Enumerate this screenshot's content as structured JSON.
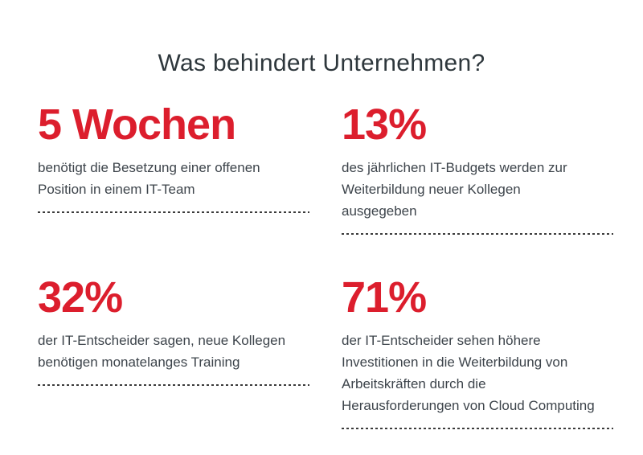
{
  "colors": {
    "background": "#ffffff",
    "accent_red": "#dc1e2d",
    "title_text": "#2e373c",
    "body_text": "#3d444b",
    "divider": "#3b3b3b"
  },
  "title": "Was behindert Unternehmen?",
  "stats": [
    {
      "value": "5 Wochen",
      "description": "benötigt die Besetzung einer offenen Position in einem IT-Team",
      "lines": [
        "benötigt die Besetzung einer offenen",
        "Position in einem IT-Team"
      ]
    },
    {
      "value": "13%",
      "description": "des jährlichen IT-Budgets werden zur Weiterbildung neuer Kollegen ausgegeben",
      "lines": [
        "des jährlichen IT-Budgets werden zur",
        "Weiterbildung neuer Kollegen",
        "ausgegeben"
      ]
    },
    {
      "value": "32%",
      "description": "der IT-Entscheider sagen, neue Kollegen benötigen monatelanges Training",
      "lines": [
        "der IT-Entscheider sagen, neue Kollegen",
        "benötigen monatelanges Training"
      ]
    },
    {
      "value": "71%",
      "description": "der IT-Entscheider sehen höhere Investitionen in die Weiterbildung von Arbeitskräften durch die Herausforderungen von Cloud Computing",
      "lines": [
        "der IT-Entscheider sehen höhere",
        "Investitionen in die Weiterbildung von",
        "Arbeitskräften durch die",
        "Herausforderungen von Cloud Computing"
      ]
    }
  ],
  "chart_data": {
    "type": "table",
    "title": "Was behindert Unternehmen?",
    "rows": [
      {
        "display": "5 Wochen",
        "value": 5,
        "unit": "Wochen",
        "label": "benötigt die Besetzung einer offenen Position in einem IT-Team"
      },
      {
        "display": "13%",
        "value": 13,
        "unit": "%",
        "label": "des jährlichen IT-Budgets werden zur Weiterbildung neuer Kollegen ausgegeben"
      },
      {
        "display": "32%",
        "value": 32,
        "unit": "%",
        "label": "der IT-Entscheider sagen, neue Kollegen benötigen monatelanges Training"
      },
      {
        "display": "71%",
        "value": 71,
        "unit": "%",
        "label": "der IT-Entscheider sehen höhere Investitionen in die Weiterbildung von Arbeitskräften durch die Herausforderungen von Cloud Computing"
      }
    ]
  }
}
